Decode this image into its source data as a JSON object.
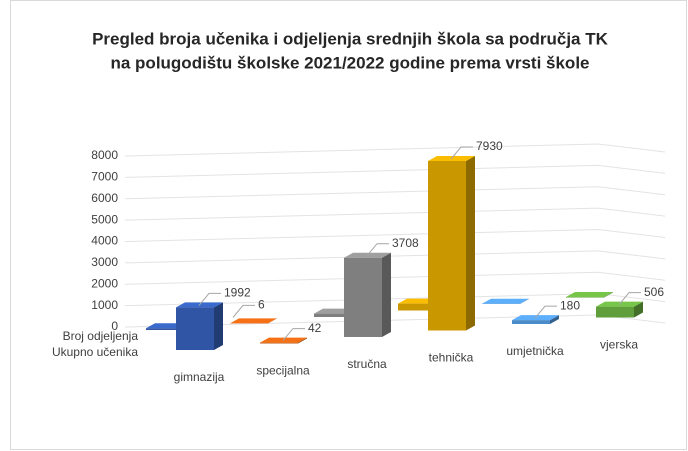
{
  "chart_data": {
    "type": "bar3d",
    "title": [
      "Pregled broja učenika i odjeljenja srednjih škola sa područja TK",
      "na polugodištu školske 2021/2022 godine prema vrsti škole"
    ],
    "categories": [
      "gimnazija",
      "specijalna",
      "stručna",
      "tehnička",
      "umjetnička",
      "vjerska"
    ],
    "colors": [
      "#2f55a4",
      "#c55a11",
      "#7f7f7f",
      "#c99700",
      "#4a8bc9",
      "#5f9e3a"
    ],
    "series": [
      {
        "name": "Broj odjeljenja",
        "values": [
          80,
          6,
          160,
          320,
          10,
          22
        ],
        "value_labels": [
          null,
          "6",
          null,
          null,
          null,
          null
        ]
      },
      {
        "name": "Ukupno učenika",
        "values": [
          1992,
          42,
          3708,
          7930,
          180,
          506
        ]
      }
    ],
    "ylim": [
      0,
      8000
    ],
    "yticks": [
      0,
      1000,
      2000,
      3000,
      4000,
      5000,
      6000,
      7000,
      8000
    ],
    "grid": true
  }
}
